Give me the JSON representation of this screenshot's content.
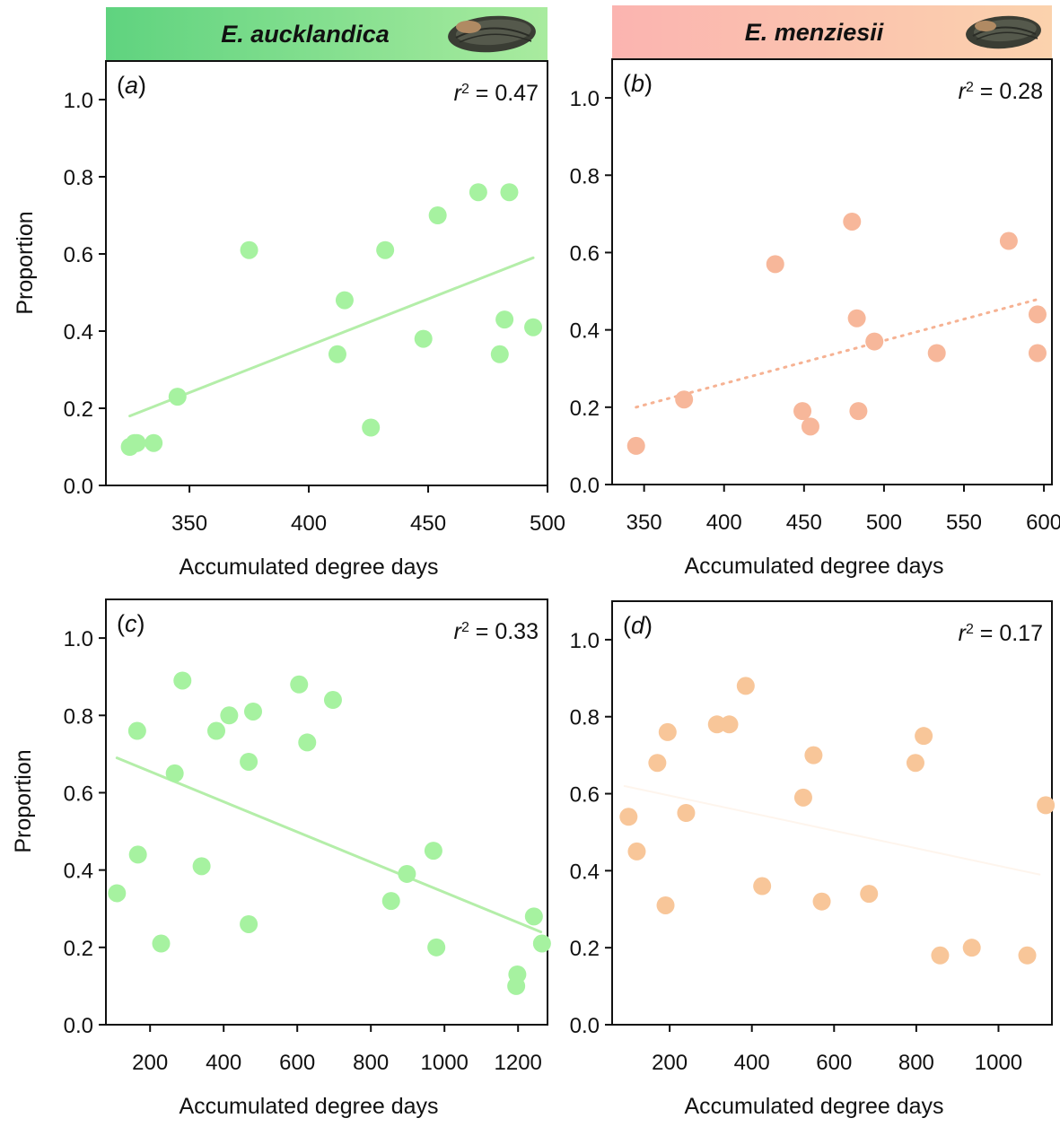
{
  "colors": {
    "aucklandica_point": "#a6f2a0",
    "aucklandica_line": "#b4eea9",
    "aucklandica_banner_left": "#5fd37f",
    "aucklandica_banner_right": "#a9eb9f",
    "menziesii_point_top": "#f7b79a",
    "menziesii_point_bottom": "#f8c699",
    "menziesii_line": "#f6b293",
    "menziesii_banner_left": "#fbb4b0",
    "menziesii_banner_right": "#fbd2ad",
    "axis": "#111111"
  },
  "icons": [
    "mussel-shell-icon",
    "mussel-shell-icon"
  ],
  "headers": [
    {
      "species": "E. aucklandica"
    },
    {
      "species": "E. menziesii"
    }
  ],
  "chart_data": [
    {
      "panel": "a",
      "label": "(a)",
      "r2_label": "r",
      "r2_sup": "2",
      "r2_value": " = 0.47",
      "type": "scatter",
      "xlabel": "Accumulated degree days",
      "ylabel": "Proportion",
      "xlim": [
        315,
        500
      ],
      "ylim": [
        0,
        1.1
      ],
      "xticks": [
        350,
        400,
        450,
        500
      ],
      "yticks": [
        0.0,
        0.2,
        0.4,
        0.6,
        0.8,
        1.0
      ],
      "yticklabels": [
        "0.0",
        "0.2",
        "0.4",
        "0.6",
        "0.8",
        "1.0"
      ],
      "trend": {
        "x": [
          325,
          494
        ],
        "y": [
          0.18,
          0.59
        ],
        "style": "solid"
      },
      "series": [
        {
          "name": "E. aucklandica",
          "x": [
            325,
            327,
            328,
            335,
            345,
            375,
            412,
            415,
            426,
            432,
            448,
            454,
            471,
            480,
            482,
            484,
            494
          ],
          "y": [
            0.1,
            0.11,
            0.11,
            0.11,
            0.23,
            0.61,
            0.34,
            0.48,
            0.15,
            0.61,
            0.38,
            0.7,
            0.76,
            0.34,
            0.43,
            0.76,
            0.41
          ]
        }
      ]
    },
    {
      "panel": "b",
      "label": "(b)",
      "r2_label": "r",
      "r2_sup": "2",
      "r2_value": " = 0.28",
      "type": "scatter",
      "xlabel": "Accumulated degree days",
      "ylabel": "",
      "xlim": [
        330,
        605
      ],
      "ylim": [
        0,
        1.1
      ],
      "xticks": [
        350,
        400,
        450,
        500,
        550,
        600
      ],
      "yticks": [
        0.0,
        0.2,
        0.4,
        0.6,
        0.8,
        1.0
      ],
      "yticklabels": [
        "0.0",
        "0.2",
        "0.4",
        "0.6",
        "0.8",
        "1.0"
      ],
      "trend": {
        "x": [
          345,
          597
        ],
        "y": [
          0.2,
          0.48
        ],
        "style": "dotted"
      },
      "series": [
        {
          "name": "E. menziesii",
          "x": [
            345,
            375,
            432,
            449,
            454,
            480,
            483,
            484,
            494,
            533,
            578,
            596,
            596
          ],
          "y": [
            0.1,
            0.22,
            0.57,
            0.19,
            0.15,
            0.68,
            0.43,
            0.19,
            0.37,
            0.34,
            0.63,
            0.44,
            0.34
          ]
        }
      ]
    },
    {
      "panel": "c",
      "label": "(c)",
      "r2_label": "r",
      "r2_sup": "2",
      "r2_value": " = 0.33",
      "type": "scatter",
      "xlabel": "Accumulated degree days",
      "ylabel": "Proportion",
      "xlim": [
        80,
        1280
      ],
      "ylim": [
        0,
        1.1
      ],
      "xticks": [
        200,
        400,
        600,
        800,
        1000,
        1200
      ],
      "yticks": [
        0.0,
        0.2,
        0.4,
        0.6,
        0.8,
        1.0
      ],
      "yticklabels": [
        "0.0",
        "0.2",
        "0.4",
        "0.6",
        "0.8",
        "1.0"
      ],
      "trend": {
        "x": [
          110,
          1262
        ],
        "y": [
          0.69,
          0.24
        ],
        "style": "solid"
      },
      "series": [
        {
          "name": "E. aucklandica",
          "x": [
            110,
            165,
            167,
            230,
            267,
            288,
            340,
            380,
            415,
            468,
            468,
            480,
            605,
            627,
            697,
            855,
            898,
            970,
            978,
            1195,
            1198,
            1243,
            1265
          ],
          "y": [
            0.34,
            0.76,
            0.44,
            0.21,
            0.65,
            0.89,
            0.41,
            0.76,
            0.8,
            0.26,
            0.68,
            0.81,
            0.88,
            0.73,
            0.84,
            0.32,
            0.39,
            0.45,
            0.2,
            0.1,
            0.13,
            0.28,
            0.21
          ]
        }
      ]
    },
    {
      "panel": "d",
      "label": "(d)",
      "r2_label": "r",
      "r2_sup": "2",
      "r2_value": " = 0.17",
      "type": "scatter",
      "xlabel": "Accumulated degree days",
      "ylabel": "",
      "xlim": [
        60,
        1130
      ],
      "ylim": [
        0,
        1.1
      ],
      "xticks": [
        200,
        400,
        600,
        800,
        1000
      ],
      "yticks": [
        0.0,
        0.2,
        0.4,
        0.6,
        0.8,
        1.0
      ],
      "yticklabels": [
        "0.0",
        "0.2",
        "0.4",
        "0.6",
        "0.8",
        "1.0"
      ],
      "trend": {
        "x": [
          90,
          1100
        ],
        "y": [
          0.62,
          0.39
        ],
        "style": "faint"
      },
      "series": [
        {
          "name": "E. menziesii",
          "x": [
            100,
            120,
            170,
            190,
            195,
            240,
            315,
            345,
            385,
            425,
            525,
            550,
            570,
            685,
            798,
            818,
            858,
            935,
            1070,
            1115
          ],
          "y": [
            0.54,
            0.45,
            0.68,
            0.31,
            0.76,
            0.55,
            0.78,
            0.78,
            0.88,
            0.36,
            0.59,
            0.7,
            0.32,
            0.34,
            0.68,
            0.75,
            0.18,
            0.2,
            0.18,
            0.57
          ]
        }
      ]
    }
  ]
}
